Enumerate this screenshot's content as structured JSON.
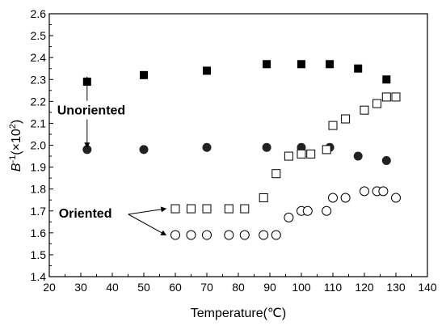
{
  "chart_data": {
    "type": "scatter",
    "title": "",
    "xlabel": "Temperature(℃)",
    "ylabel_main": "B",
    "ylabel_sup": "-1",
    "ylabel_tail": "(×10",
    "ylabel_tail_sup": "2",
    "ylabel_close": ")",
    "xlim": [
      20,
      140
    ],
    "ylim": [
      1.4,
      2.6
    ],
    "xticks": [
      20,
      30,
      40,
      50,
      60,
      70,
      80,
      90,
      100,
      110,
      120,
      130,
      140
    ],
    "yticks": [
      "1.4",
      "1.5",
      "1.6",
      "1.7",
      "1.8",
      "1.9",
      "2.0",
      "2.1",
      "2.2",
      "2.3",
      "2.4",
      "2.5",
      "2.6"
    ],
    "grid": false,
    "series": [
      {
        "marker": "filled-square",
        "x": [
          32,
          50,
          70,
          89,
          100,
          109,
          118,
          127
        ],
        "y": [
          2.29,
          2.32,
          2.34,
          2.37,
          2.37,
          2.37,
          2.35,
          2.3
        ]
      },
      {
        "marker": "filled-circle",
        "x": [
          32,
          50,
          70,
          89,
          100,
          109,
          118,
          127
        ],
        "y": [
          1.98,
          1.98,
          1.99,
          1.99,
          1.99,
          1.99,
          1.95,
          1.93
        ]
      },
      {
        "marker": "open-square",
        "x": [
          60,
          65,
          70,
          77,
          82,
          88,
          92,
          96,
          100,
          103,
          108,
          110,
          114,
          120,
          124,
          127,
          130
        ],
        "y": [
          1.71,
          1.71,
          1.71,
          1.71,
          1.71,
          1.76,
          1.87,
          1.95,
          1.96,
          1.96,
          1.98,
          2.09,
          2.12,
          2.16,
          2.19,
          2.22,
          2.22
        ]
      },
      {
        "marker": "open-circle",
        "x": [
          60,
          65,
          70,
          77,
          82,
          88,
          92,
          96,
          100,
          102,
          108,
          110,
          114,
          120,
          124,
          126,
          130
        ],
        "y": [
          1.59,
          1.59,
          1.59,
          1.59,
          1.59,
          1.59,
          1.59,
          1.67,
          1.7,
          1.7,
          1.7,
          1.76,
          1.76,
          1.79,
          1.79,
          1.79,
          1.76
        ]
      }
    ],
    "annotations": [
      {
        "text": "Unoriented",
        "x": 22.5,
        "y": 2.14,
        "arrows_to": [
          [
            32,
            2.31
          ],
          [
            32,
            1.99
          ]
        ]
      },
      {
        "text": "Oriented",
        "x": 23,
        "y": 1.67,
        "arrows_to": [
          [
            57,
            1.71
          ],
          [
            57,
            1.59
          ]
        ]
      }
    ]
  }
}
